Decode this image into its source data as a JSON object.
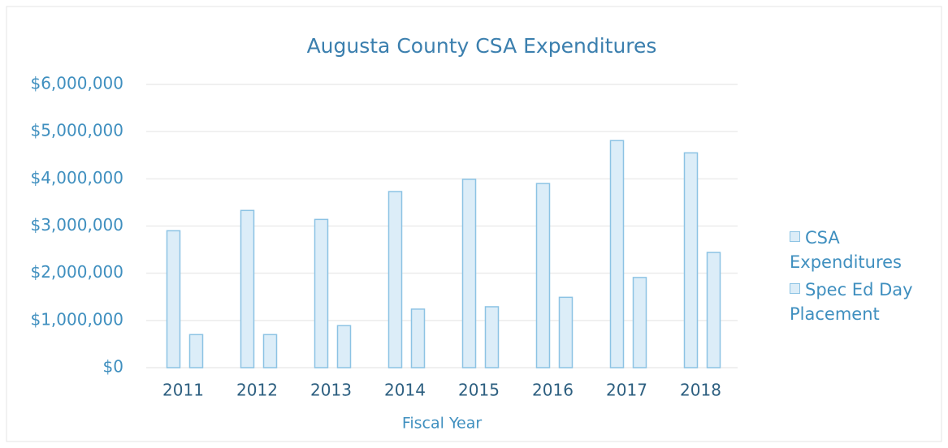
{
  "chart_data": {
    "type": "bar",
    "title": "Augusta County CSA Expenditures",
    "xlabel": "Fiscal Year",
    "categories": [
      "2011",
      "2012",
      "2013",
      "2014",
      "2015",
      "2016",
      "2017",
      "2018"
    ],
    "series": [
      {
        "name": "CSA Expenditures",
        "color": "#dcedf8",
        "values": [
          2900000,
          3330000,
          3140000,
          3730000,
          3990000,
          3900000,
          4810000,
          4550000
        ]
      },
      {
        "name": "Spec Ed Day Placement",
        "color": "#dcedf8",
        "values": [
          700000,
          700000,
          890000,
          1240000,
          1290000,
          1490000,
          1910000,
          2440000
        ]
      }
    ],
    "ylim": [
      0,
      6000000
    ],
    "yticks": [
      {
        "value": 0,
        "label": "$0"
      },
      {
        "value": 1000000,
        "label": "$1,000,000"
      },
      {
        "value": 2000000,
        "label": "$2,000,000"
      },
      {
        "value": 3000000,
        "label": "$3,000,000"
      },
      {
        "value": 4000000,
        "label": "$4,000,000"
      },
      {
        "value": 5000000,
        "label": "$5,000,000"
      },
      {
        "value": 6000000,
        "label": "$6,000,000"
      }
    ],
    "grid": true,
    "legend": "right"
  }
}
